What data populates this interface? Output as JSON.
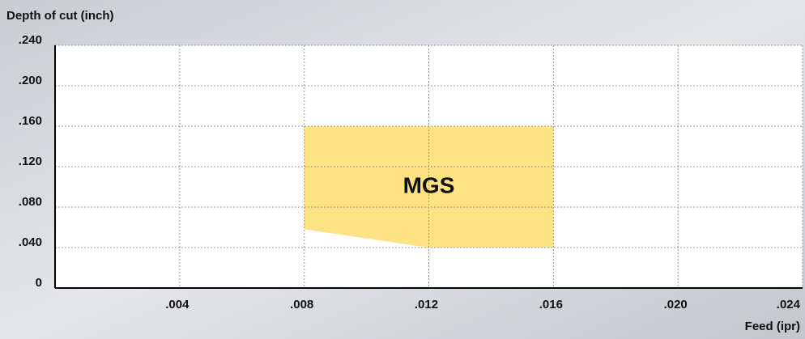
{
  "chart_data": {
    "type": "polygon",
    "y_label": "Depth of cut (inch)",
    "x_label": "Feed (ipr)",
    "series": [
      {
        "name": "MGS",
        "color": "#fde383",
        "x": [
          0.008,
          0.012,
          0.016,
          0.016,
          0.008
        ],
        "values": [
          0.058,
          0.04,
          0.04,
          0.16,
          0.16
        ]
      }
    ],
    "xlim": [
      0,
      0.024
    ],
    "xticks": [
      {
        "value": 0.004,
        "label": ".004"
      },
      {
        "value": 0.008,
        "label": ".008"
      },
      {
        "value": 0.012,
        "label": ".012"
      },
      {
        "value": 0.016,
        "label": ".016"
      },
      {
        "value": 0.02,
        "label": ".020"
      },
      {
        "value": 0.024,
        "label": ".024"
      }
    ],
    "ylim": [
      0,
      0.24
    ],
    "yticks": [
      0,
      {
        "value": 0.04,
        "label": ".040"
      },
      {
        "value": 0.08,
        "label": ".080"
      },
      {
        "value": 0.12,
        "label": ".120"
      },
      {
        "value": 0.16,
        "label": ".160"
      },
      {
        "value": 0.2,
        "label": ".200"
      },
      {
        "value": 0.24,
        "label": ".240"
      }
    ],
    "grid": true
  }
}
